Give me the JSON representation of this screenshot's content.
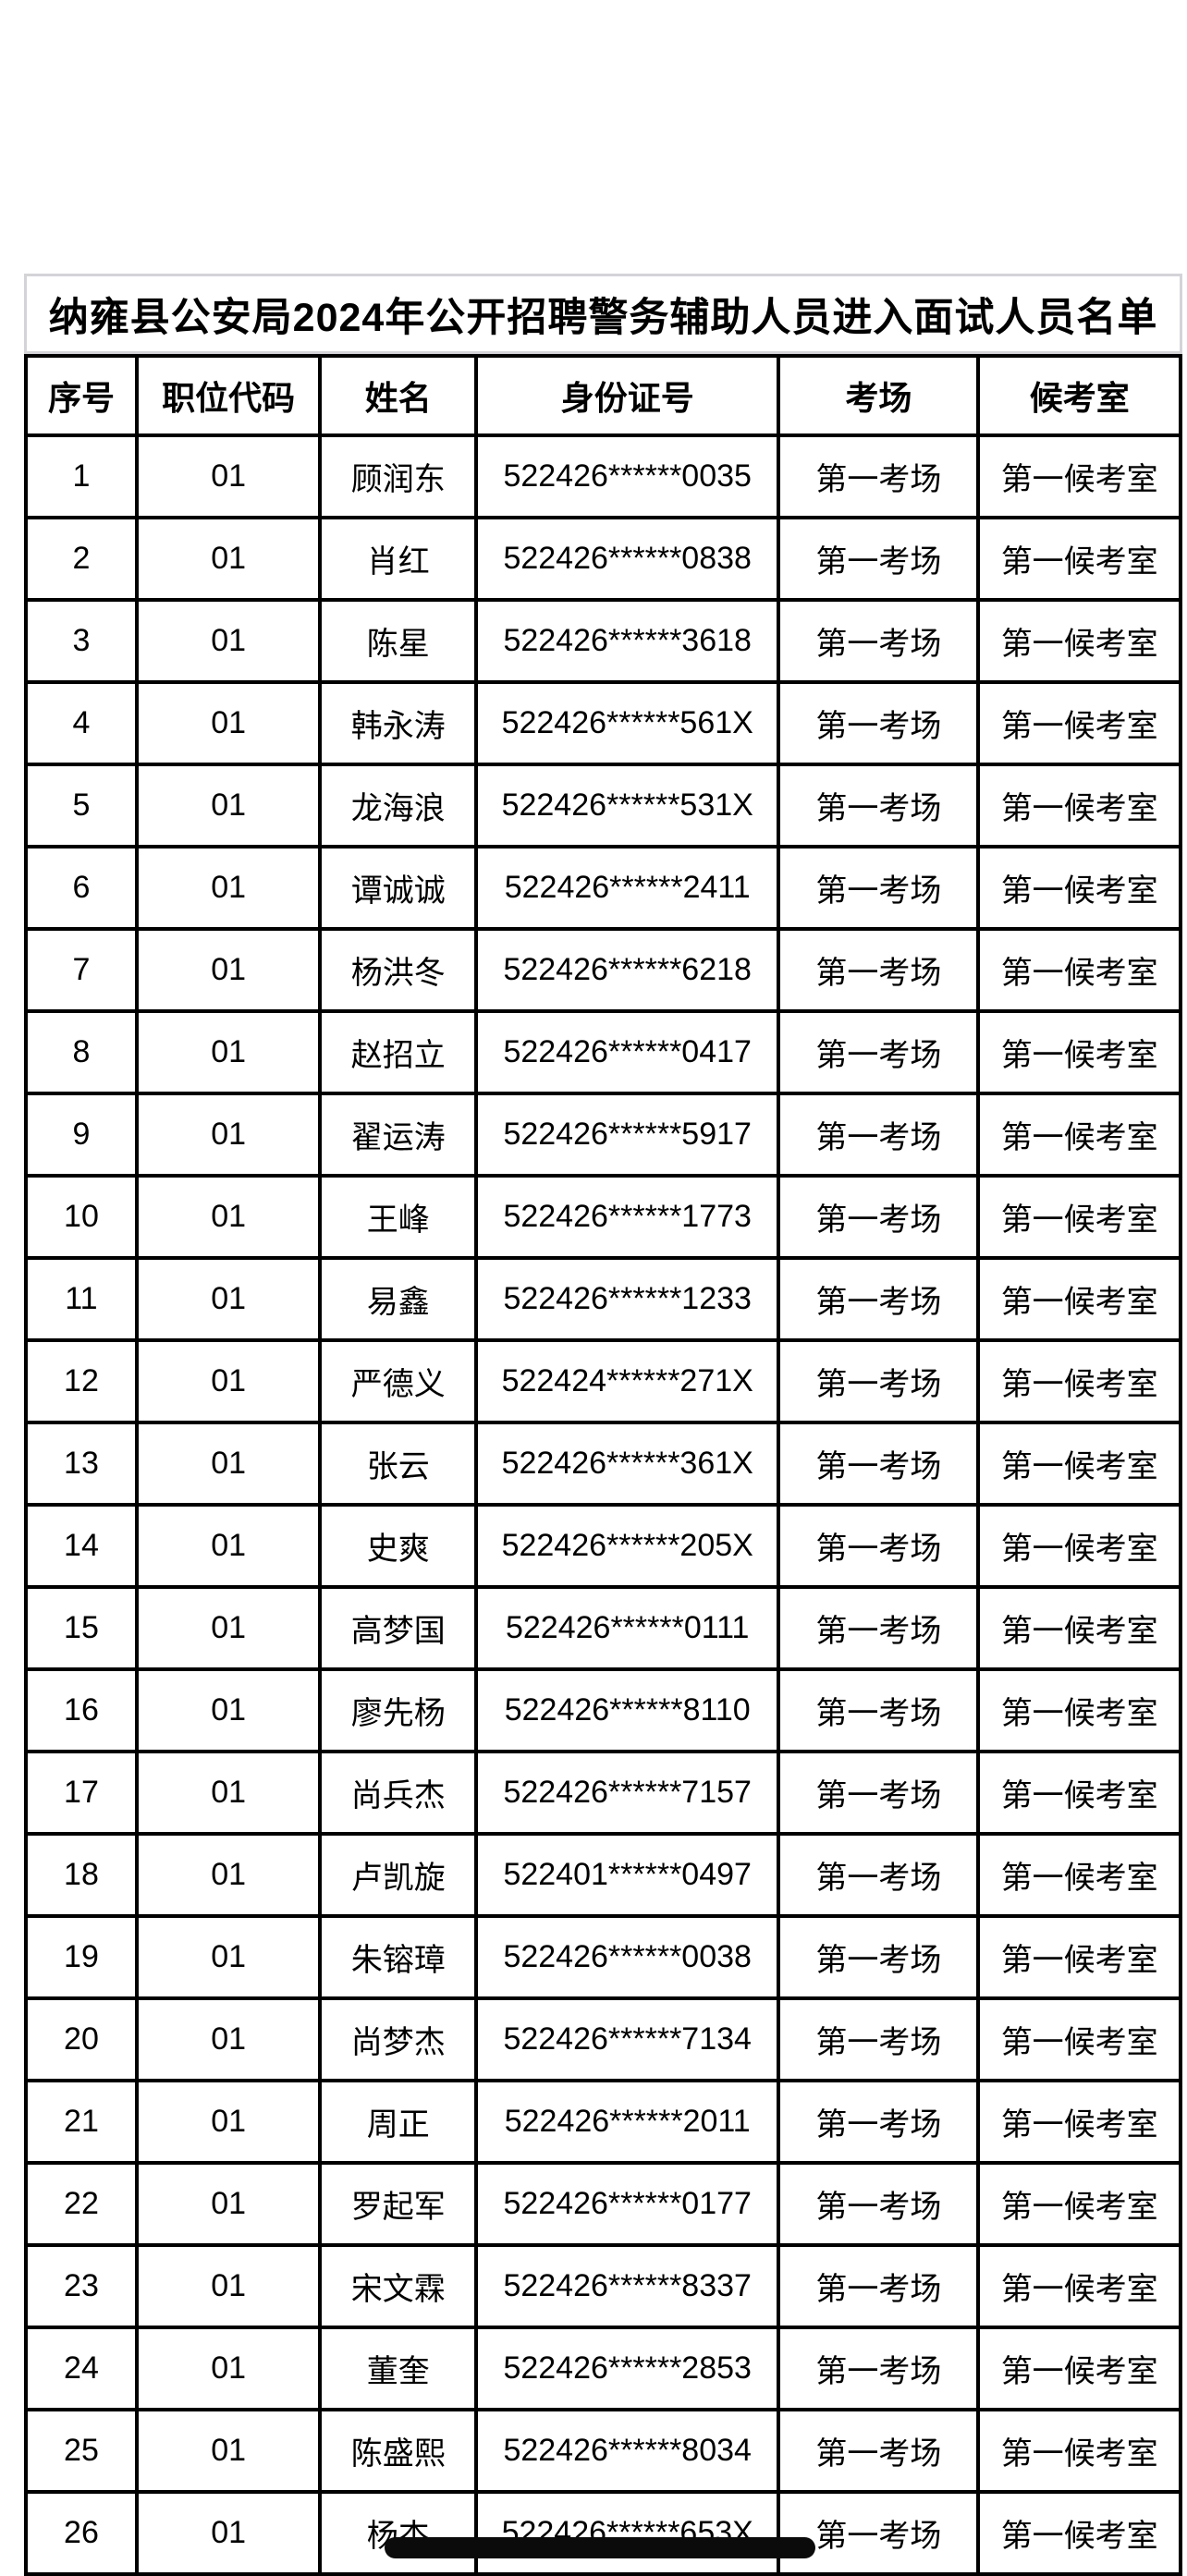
{
  "page": {
    "title": "纳雍县公安局2024年公开招聘警务辅助人员进入面试人员名单"
  },
  "colors": {
    "table_border": "#000000",
    "title_box_border": "#d4d4d8",
    "redaction_bar": "#0b0b0b",
    "background": "#ffffff"
  },
  "table": {
    "headers": [
      "序号",
      "职位代码",
      "姓名",
      "身份证号",
      "考场",
      "候考室"
    ],
    "rows": [
      [
        "1",
        "01",
        "顾润东",
        "522426******0035",
        "第一考场",
        "第一候考室"
      ],
      [
        "2",
        "01",
        "肖红",
        "522426******0838",
        "第一考场",
        "第一候考室"
      ],
      [
        "3",
        "01",
        "陈星",
        "522426******3618",
        "第一考场",
        "第一候考室"
      ],
      [
        "4",
        "01",
        "韩永涛",
        "522426******561X",
        "第一考场",
        "第一候考室"
      ],
      [
        "5",
        "01",
        "龙海浪",
        "522426******531X",
        "第一考场",
        "第一候考室"
      ],
      [
        "6",
        "01",
        "谭诚诚",
        "522426******2411",
        "第一考场",
        "第一候考室"
      ],
      [
        "7",
        "01",
        "杨洪冬",
        "522426******6218",
        "第一考场",
        "第一候考室"
      ],
      [
        "8",
        "01",
        "赵招立",
        "522426******0417",
        "第一考场",
        "第一候考室"
      ],
      [
        "9",
        "01",
        "翟运涛",
        "522426******5917",
        "第一考场",
        "第一候考室"
      ],
      [
        "10",
        "01",
        "王峰",
        "522426******1773",
        "第一考场",
        "第一候考室"
      ],
      [
        "11",
        "01",
        "易鑫",
        "522426******1233",
        "第一考场",
        "第一候考室"
      ],
      [
        "12",
        "01",
        "严德义",
        "522424******271X",
        "第一考场",
        "第一候考室"
      ],
      [
        "13",
        "01",
        "张云",
        "522426******361X",
        "第一考场",
        "第一候考室"
      ],
      [
        "14",
        "01",
        "史爽",
        "522426******205X",
        "第一考场",
        "第一候考室"
      ],
      [
        "15",
        "01",
        "高梦国",
        "522426******0111",
        "第一考场",
        "第一候考室"
      ],
      [
        "16",
        "01",
        "廖先杨",
        "522426******8110",
        "第一考场",
        "第一候考室"
      ],
      [
        "17",
        "01",
        "尚兵杰",
        "522426******7157",
        "第一考场",
        "第一候考室"
      ],
      [
        "18",
        "01",
        "卢凯旋",
        "522401******0497",
        "第一考场",
        "第一候考室"
      ],
      [
        "19",
        "01",
        "朱镕璋",
        "522426******0038",
        "第一考场",
        "第一候考室"
      ],
      [
        "20",
        "01",
        "尚梦杰",
        "522426******7134",
        "第一考场",
        "第一候考室"
      ],
      [
        "21",
        "01",
        "周正",
        "522426******2011",
        "第一考场",
        "第一候考室"
      ],
      [
        "22",
        "01",
        "罗起军",
        "522426******0177",
        "第一考场",
        "第一候考室"
      ],
      [
        "23",
        "01",
        "宋文霖",
        "522426******8337",
        "第一考场",
        "第一候考室"
      ],
      [
        "24",
        "01",
        "董奎",
        "522426******2853",
        "第一考场",
        "第一候考室"
      ],
      [
        "25",
        "01",
        "陈盛熙",
        "522426******8034",
        "第一考场",
        "第一候考室"
      ],
      [
        "26",
        "01",
        "杨杰",
        "522426******653X",
        "第一考场",
        "第一候考室"
      ]
    ],
    "cell_names": [
      "cell-index",
      "cell-job-code",
      "cell-name",
      "cell-id-number",
      "cell-exam-room",
      "cell-waiting-room"
    ]
  }
}
